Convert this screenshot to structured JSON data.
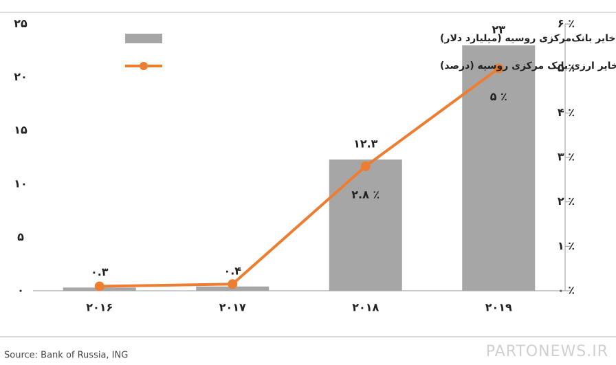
{
  "chart_data": {
    "type": "bar",
    "categories": [
      "۲۰۱۶",
      "۲۰۱۷",
      "۲۰۱۸",
      "۲۰۱۹"
    ],
    "series": [
      {
        "name": "حجم یوان در ذخایر بانک‌مرکزی روسیه (میلیارد دلار)",
        "type": "bar",
        "color": "#a6a6a6",
        "values": [
          0.3,
          0.4,
          12.3,
          23
        ],
        "value_labels": [
          "۰.۳",
          "۰.۴",
          "۱۲.۳",
          "۲۳"
        ]
      },
      {
        "name": "نسبت یوان به کل ذخایر ارزی بانک مرکزی روسیه (درصد)",
        "type": "line",
        "axis": "y2",
        "color": "#ed7d31",
        "values": [
          0.1,
          0.15,
          2.8,
          5
        ],
        "value_labels": [
          null,
          null,
          "۲.۸ ٪",
          "۵ ٪"
        ]
      }
    ],
    "ylim": [
      0,
      25
    ],
    "yticks": [
      {
        "value": 0,
        "label": "۰"
      },
      {
        "value": 5,
        "label": "۵"
      },
      {
        "value": 10,
        "label": "۱۰"
      },
      {
        "value": 15,
        "label": "۱۵"
      },
      {
        "value": 20,
        "label": "۲۰"
      },
      {
        "value": 25,
        "label": "۲۵"
      }
    ],
    "y2lim": [
      0,
      6
    ],
    "y2ticks": [
      {
        "value": 0,
        "label": "۰ ٪"
      },
      {
        "value": 1,
        "label": "۱ ٪"
      },
      {
        "value": 2,
        "label": "۲ ٪"
      },
      {
        "value": 3,
        "label": "۳ ٪"
      },
      {
        "value": 4,
        "label": "۴ ٪"
      },
      {
        "value": 5,
        "label": "۵ ٪"
      },
      {
        "value": 6,
        "label": "۶ ٪"
      }
    ]
  },
  "source": "Source: Bank of Russia, ING",
  "watermark": "PARTONEWS.IR"
}
